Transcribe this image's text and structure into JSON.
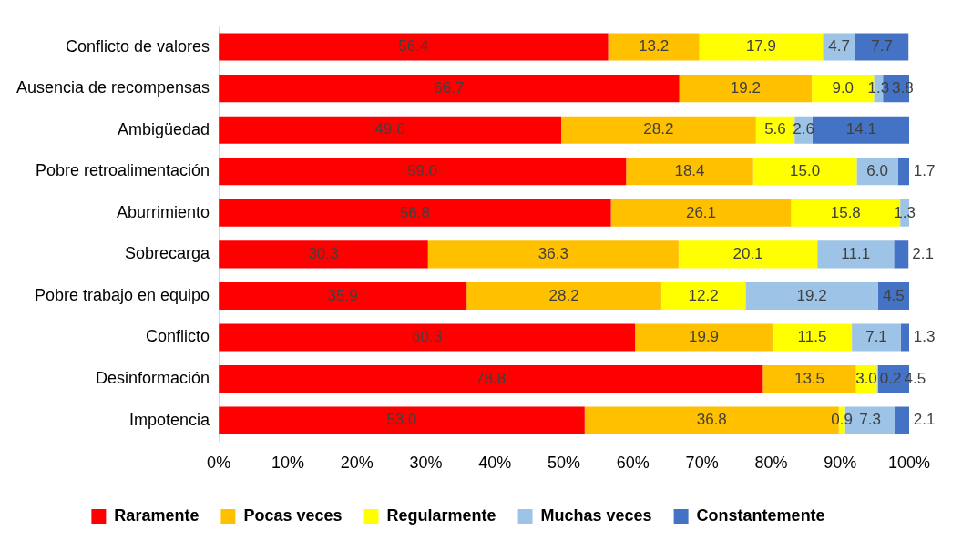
{
  "chart_data": {
    "type": "bar",
    "orientation": "horizontal",
    "stacked": true,
    "categories": [
      "Conflicto de valores",
      "Ausencia de recompensas",
      "Ambigüedad",
      "Pobre retroalimentación",
      "Aburrimiento",
      "Sobrecarga",
      "Pobre trabajo en equipo",
      "Conflicto",
      "Desinformación",
      "Impotencia"
    ],
    "series": [
      {
        "name": "Raramente",
        "color": "#ff0000",
        "values": [
          56.4,
          66.7,
          49.6,
          59.0,
          56.8,
          30.3,
          35.9,
          60.3,
          78.8,
          53.0
        ],
        "value_labels": [
          "56.4",
          "66.7",
          "49.6",
          "59.0",
          "56.8",
          "30.3",
          "35.9",
          "60.3",
          "78.8",
          "53.0"
        ]
      },
      {
        "name": "Pocas veces",
        "color": "#ffc000",
        "values": [
          13.2,
          19.2,
          28.2,
          18.4,
          26.1,
          36.3,
          28.2,
          19.9,
          13.5,
          36.8
        ],
        "value_labels": [
          "13.2",
          "19.2",
          "28.2",
          "18.4",
          "26.1",
          "36.3",
          "28.2",
          "19.9",
          "13.5",
          "36.8"
        ]
      },
      {
        "name": "Regularmente",
        "color": "#ffff00",
        "values": [
          17.9,
          9.0,
          5.6,
          15.0,
          15.8,
          20.1,
          12.2,
          11.5,
          3.0,
          0.9
        ],
        "value_labels": [
          "17.9",
          "9.0",
          "5.6",
          "15.0",
          "15.8",
          "20.1",
          "12.2",
          "11.5",
          "3.0",
          "0.9"
        ]
      },
      {
        "name": "Muchas veces",
        "color": "#9dc3e6",
        "values": [
          4.7,
          1.3,
          2.6,
          6.0,
          1.3,
          11.1,
          19.2,
          7.1,
          0.2,
          7.3
        ],
        "value_labels": [
          "4.7",
          "1.3",
          "2.6",
          "6.0",
          "1.3",
          "11.1",
          "19.2",
          "7.1",
          "0.2",
          "7.3"
        ]
      },
      {
        "name": "Constantemente",
        "color": "#4472c4",
        "values": [
          7.7,
          3.8,
          14.1,
          1.7,
          null,
          2.1,
          4.5,
          1.3,
          4.5,
          2.1
        ],
        "value_labels": [
          "7.7",
          "3.8",
          "14.1",
          "1.7",
          null,
          "2.1",
          "4.5",
          "1.3",
          "4.5",
          "2.1"
        ]
      }
    ],
    "xlim": [
      0,
      100
    ],
    "xticks": [
      {
        "value": 0,
        "label": "0%"
      },
      {
        "value": 10,
        "label": "10%"
      },
      {
        "value": 20,
        "label": "20%"
      },
      {
        "value": 30,
        "label": "30%"
      },
      {
        "value": 40,
        "label": "40%"
      },
      {
        "value": 50,
        "label": "50%"
      },
      {
        "value": 60,
        "label": "60%"
      },
      {
        "value": 70,
        "label": "70%"
      },
      {
        "value": 80,
        "label": "80%"
      },
      {
        "value": 90,
        "label": "90%"
      },
      {
        "value": 100,
        "label": "100%"
      }
    ],
    "legend": "bottom",
    "grid": false
  }
}
